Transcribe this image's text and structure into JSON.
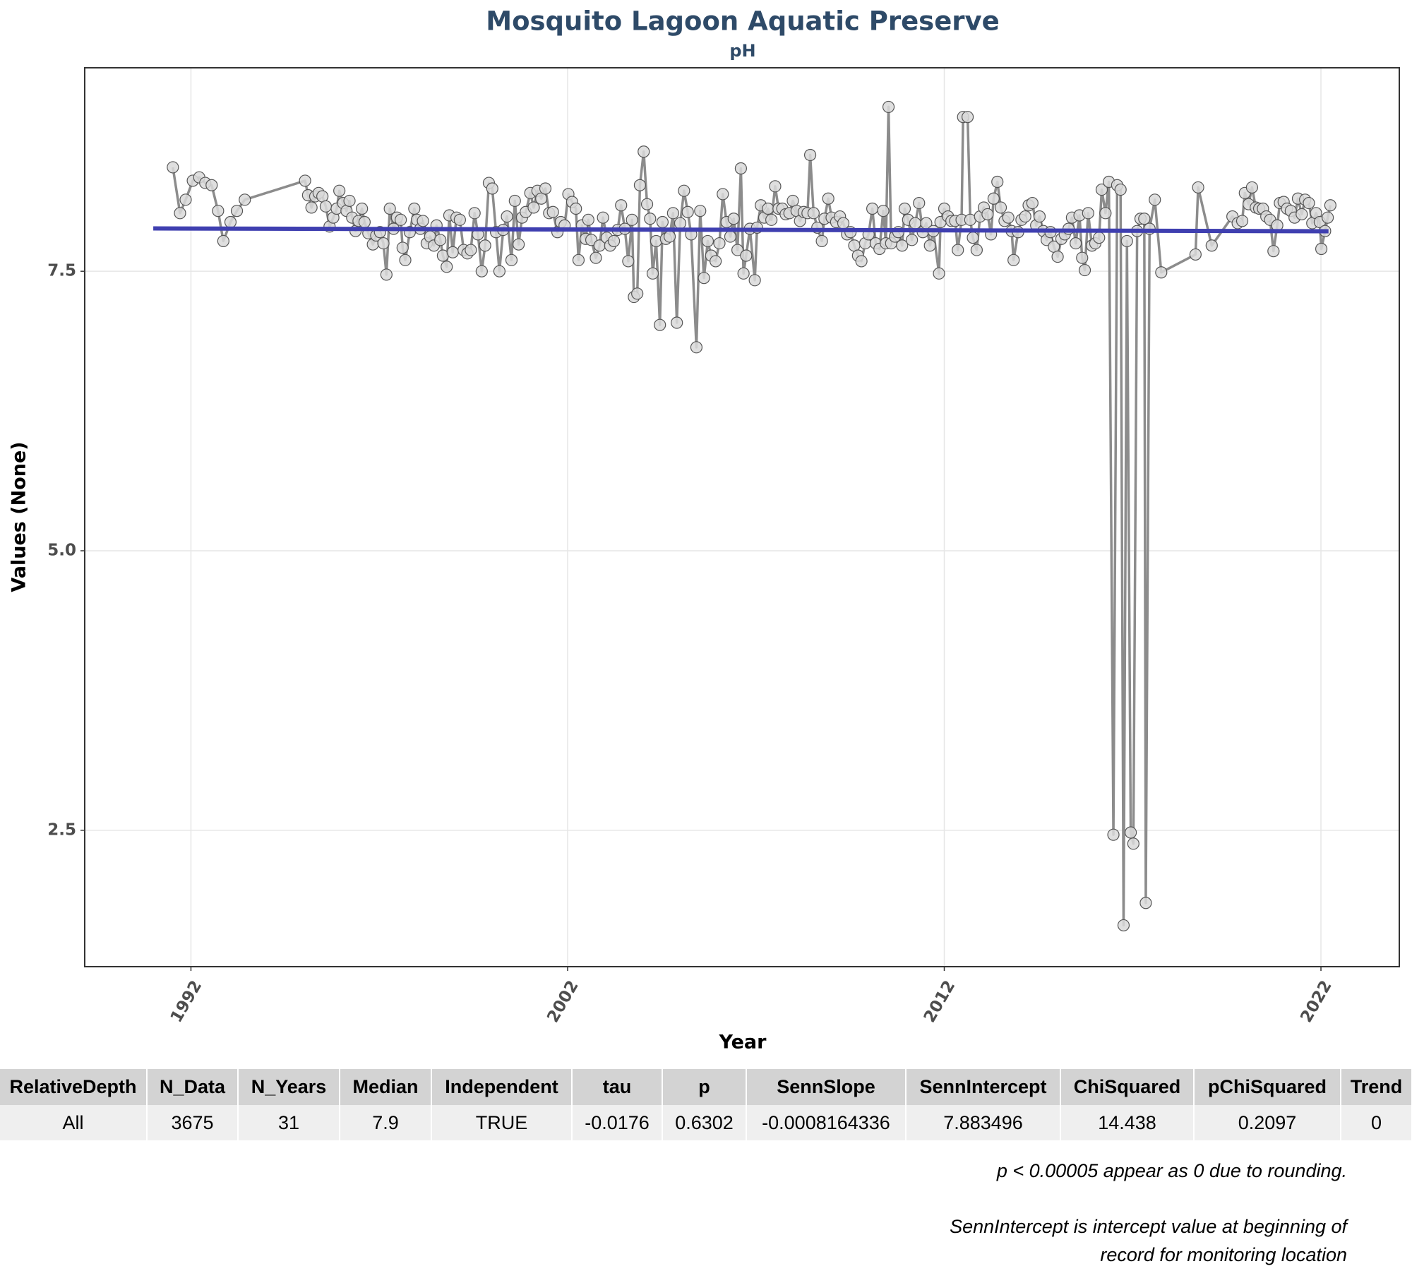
{
  "chart_data": {
    "type": "line",
    "title": "Mosquito Lagoon Aquatic Preserve",
    "subtitle": "pH",
    "x_label": "Year",
    "y_label": "Values (None)",
    "xlim": [
      1989.18,
      2024.08
    ],
    "ylim": [
      1.28,
      9.32
    ],
    "xticks": [
      1992,
      2002,
      2012,
      2022
    ],
    "yticks": [
      2.5,
      {
        "value": 5,
        "label": "5.0"
      },
      7.5
    ],
    "grid": true,
    "series": [
      {
        "color": "#8c8c8c",
        "markers": true,
        "x": [
          1991.52,
          1991.71,
          1991.86,
          1992.05,
          1992.22,
          1992.38,
          1992.55,
          1992.72,
          1992.86,
          1993.05,
          1993.22,
          1993.43,
          1995.03,
          1995.11,
          1995.2,
          1995.3,
          1995.39,
          1995.49,
          1995.58,
          1995.68,
          1995.78,
          1995.87,
          1995.94,
          1996.04,
          1996.13,
          1996.21,
          1996.28,
          1996.37,
          1996.45,
          1996.54,
          1996.61,
          1996.71,
          1996.83,
          1996.92,
          1997.02,
          1997.11,
          1997.19,
          1997.28,
          1997.38,
          1997.47,
          1997.57,
          1997.62,
          1997.69,
          1997.81,
          1997.93,
          1998.0,
          1998.09,
          1998.16,
          1998.26,
          1998.35,
          1998.45,
          1998.52,
          1998.62,
          1998.69,
          1998.79,
          1998.86,
          1998.95,
          1999.05,
          1999.14,
          1999.24,
          1999.34,
          1999.43,
          1999.53,
          1999.62,
          1999.72,
          1999.81,
          1999.91,
          2000.0,
          2000.1,
          2000.19,
          2000.29,
          2000.39,
          2000.51,
          2000.6,
          2000.7,
          2000.79,
          2000.89,
          2001.01,
          2001.1,
          2001.2,
          2001.3,
          2001.41,
          2001.51,
          2001.61,
          2001.73,
          2001.82,
          2001.92,
          2002.02,
          2002.12,
          2002.22,
          2002.29,
          2002.38,
          2002.48,
          2002.55,
          2002.63,
          2002.75,
          2002.85,
          2002.94,
          2003.04,
          2003.13,
          2003.23,
          2003.33,
          2003.42,
          2003.52,
          2003.61,
          2003.71,
          2003.76,
          2003.85,
          2003.92,
          2004.02,
          2004.11,
          2004.19,
          2004.26,
          2004.35,
          2004.45,
          2004.52,
          2004.61,
          2004.71,
          2004.8,
          2004.9,
          2004.99,
          2005.09,
          2005.19,
          2005.28,
          2005.42,
          2005.52,
          2005.62,
          2005.72,
          2005.81,
          2005.93,
          2006.03,
          2006.12,
          2006.22,
          2006.32,
          2006.41,
          2006.51,
          2006.6,
          2006.67,
          2006.74,
          2006.84,
          2006.97,
          2007.03,
          2007.13,
          2007.22,
          2007.32,
          2007.41,
          2007.51,
          2007.6,
          2007.7,
          2007.79,
          2007.89,
          2007.98,
          2008.08,
          2008.17,
          2008.27,
          2008.37,
          2008.44,
          2008.53,
          2008.63,
          2008.75,
          2008.82,
          2008.92,
          2009.01,
          2009.13,
          2009.23,
          2009.32,
          2009.42,
          2009.51,
          2009.61,
          2009.71,
          2009.8,
          2009.9,
          2009.99,
          2010.09,
          2010.18,
          2010.28,
          2010.38,
          2010.45,
          2010.52,
          2010.59,
          2010.69,
          2010.78,
          2010.88,
          2010.95,
          2011.04,
          2011.14,
          2011.23,
          2011.33,
          2011.43,
          2011.52,
          2011.62,
          2011.71,
          2011.86,
          2011.9,
          2012.0,
          2012.1,
          2012.19,
          2012.29,
          2012.36,
          2012.46,
          2012.5,
          2012.62,
          2012.69,
          2012.76,
          2012.86,
          2012.95,
          2013.05,
          2013.15,
          2013.24,
          2013.31,
          2013.41,
          2013.5,
          2013.6,
          2013.7,
          2013.79,
          2013.84,
          2013.96,
          2014.05,
          2014.15,
          2014.24,
          2014.34,
          2014.44,
          2014.53,
          2014.63,
          2014.72,
          2014.82,
          2014.91,
          2015.01,
          2015.11,
          2015.2,
          2015.3,
          2015.39,
          2015.49,
          2015.59,
          2015.66,
          2015.73,
          2015.82,
          2015.92,
          2016.01,
          2016.11,
          2016.18,
          2016.28,
          2016.37,
          2016.49,
          2016.59,
          2016.68,
          2016.76,
          2016.85,
          2016.95,
          2017.02,
          2017.12,
          2017.21,
          2017.31,
          2017.35,
          2017.45,
          2017.59,
          2017.76,
          2018.67,
          2018.74,
          2019.1,
          2019.65,
          2019.79,
          2019.91,
          2019.98,
          2020.08,
          2020.17,
          2020.27,
          2020.36,
          2020.46,
          2020.55,
          2020.65,
          2020.74,
          2020.84,
          2020.91,
          2021.01,
          2021.1,
          2021.2,
          2021.3,
          2021.39,
          2021.49,
          2021.58,
          2021.68,
          2021.77,
          2021.87,
          2021.97,
          2022.01,
          2022.11,
          2022.18,
          2022.25
        ],
        "values": [
          8.43,
          8.02,
          8.14,
          8.31,
          8.34,
          8.29,
          8.27,
          8.04,
          7.77,
          7.94,
          8.04,
          8.14,
          8.31,
          8.18,
          8.07,
          8.17,
          8.2,
          8.17,
          8.08,
          7.9,
          7.98,
          8.06,
          8.22,
          8.11,
          8.04,
          8.13,
          7.98,
          7.86,
          7.95,
          8.06,
          7.94,
          7.84,
          7.74,
          7.82,
          7.85,
          7.75,
          7.47,
          8.06,
          7.88,
          7.98,
          7.96,
          7.71,
          7.6,
          7.85,
          8.06,
          7.96,
          7.88,
          7.95,
          7.75,
          7.81,
          7.73,
          7.91,
          7.78,
          7.64,
          7.54,
          8.0,
          7.67,
          7.98,
          7.96,
          7.69,
          7.66,
          7.69,
          8.02,
          7.83,
          7.5,
          7.73,
          8.29,
          8.24,
          7.85,
          7.5,
          7.87,
          7.99,
          7.6,
          8.13,
          7.74,
          7.98,
          8.03,
          8.2,
          8.07,
          8.22,
          8.15,
          8.24,
          8.02,
          8.03,
          7.85,
          7.94,
          7.91,
          8.19,
          8.12,
          8.06,
          7.6,
          7.91,
          7.79,
          7.96,
          7.78,
          7.62,
          7.73,
          7.98,
          7.8,
          7.73,
          7.77,
          7.87,
          8.09,
          7.88,
          7.59,
          7.96,
          7.27,
          7.3,
          8.27,
          8.57,
          8.1,
          7.97,
          7.48,
          7.77,
          7.02,
          7.94,
          7.79,
          7.81,
          8.02,
          7.04,
          7.93,
          8.22,
          8.03,
          7.83,
          6.82,
          8.04,
          7.44,
          7.77,
          7.64,
          7.59,
          7.75,
          8.19,
          7.94,
          7.81,
          7.97,
          7.69,
          8.42,
          7.48,
          7.64,
          7.88,
          7.42,
          7.89,
          8.09,
          7.98,
          8.06,
          7.96,
          8.26,
          8.06,
          8.06,
          8.01,
          8.02,
          8.13,
          8.04,
          7.95,
          8.03,
          8.02,
          8.54,
          8.02,
          7.89,
          7.77,
          7.97,
          8.15,
          7.98,
          7.94,
          7.99,
          7.93,
          7.83,
          7.85,
          7.73,
          7.64,
          7.59,
          7.75,
          7.83,
          8.06,
          7.75,
          7.7,
          8.04,
          7.75,
          8.97,
          7.75,
          7.81,
          7.85,
          7.73,
          8.06,
          7.96,
          7.78,
          7.93,
          8.11,
          7.85,
          7.93,
          7.73,
          7.86,
          7.48,
          7.94,
          8.06,
          7.99,
          7.95,
          7.95,
          7.69,
          7.96,
          8.88,
          8.88,
          7.96,
          7.8,
          7.69,
          7.99,
          8.07,
          8.01,
          7.83,
          8.15,
          8.3,
          8.07,
          7.95,
          7.98,
          7.86,
          7.6,
          7.85,
          7.96,
          7.99,
          8.09,
          8.11,
          7.91,
          7.99,
          7.86,
          7.78,
          7.85,
          7.72,
          7.63,
          7.79,
          7.83,
          7.88,
          7.98,
          7.75,
          8.0,
          7.62,
          7.51,
          8.02,
          7.73,
          7.75,
          7.8,
          8.23,
          8.02,
          8.3,
          2.46,
          8.27,
          8.23,
          1.65,
          7.77,
          2.48,
          2.38,
          7.86,
          7.97,
          7.97,
          1.85,
          7.88,
          8.14,
          7.49,
          7.65,
          8.25,
          7.73,
          7.99,
          7.93,
          7.95,
          8.2,
          8.1,
          8.25,
          8.07,
          8.06,
          8.06,
          7.99,
          7.96,
          7.68,
          7.91,
          8.11,
          8.12,
          8.06,
          8.04,
          7.98,
          8.15,
          8.01,
          8.14,
          8.11,
          7.93,
          8.02,
          7.94,
          7.7,
          7.86,
          7.98,
          8.09
        ]
      },
      {
        "color": "#3f3fb0",
        "markers": false,
        "x": [
          1991.0,
          2022.2
        ],
        "values": [
          7.883,
          7.858
        ]
      }
    ]
  },
  "table": {
    "header": [
      "RelativeDepth",
      "N_Data",
      "N_Years",
      "Median",
      "Independent",
      "tau",
      "p",
      "SennSlope",
      "SennIntercept",
      "ChiSquared",
      "pChiSquared",
      "Trend"
    ],
    "rows": [
      [
        "All",
        "3675",
        "31",
        "7.9",
        "TRUE",
        "-0.0176",
        "0.6302",
        "-0.0008164336",
        "7.883496",
        "14.438",
        "0.2097",
        "0"
      ]
    ]
  },
  "notes": [
    "p < 0.00005 appear as 0 due to rounding.",
    "SennIntercept is intercept value at beginning of record for monitoring location"
  ]
}
